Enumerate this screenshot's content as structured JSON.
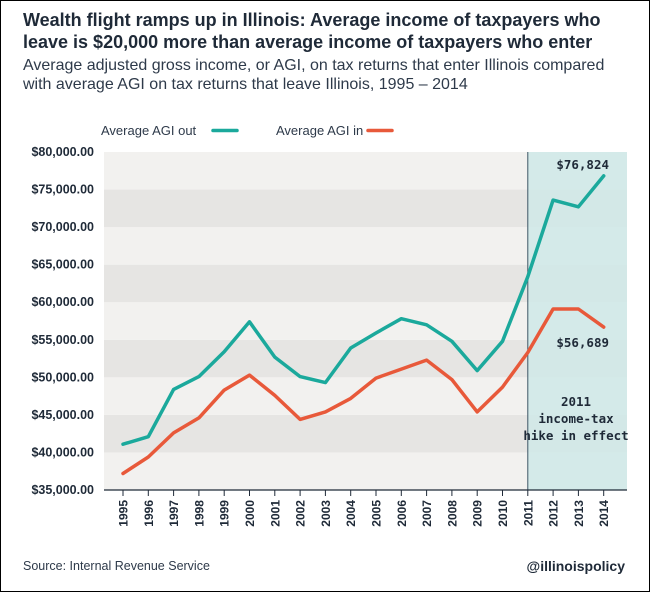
{
  "title": "Wealth flight ramps up in Illinois: Average income of taxpayers who leave is $20,000 more than average income of taxpayers who enter",
  "subtitle": "Average adjusted gross income, or AGI, on tax returns that enter Illinois compared with average AGI on tax returns that leave Illinois, 1995 – 2014",
  "source": "Source: Internal Revenue Service",
  "handle": "@illinoispolicy",
  "colors": {
    "out": "#1ba99c",
    "in": "#e8593a",
    "highlight": "#cfe9e7",
    "band_light": "#f2f1ef",
    "band_dark": "#e6e5e3"
  },
  "chart_data": {
    "type": "line",
    "xlabel": "",
    "ylabel": "",
    "x": [
      "1995",
      "1996",
      "1997",
      "1998",
      "1999",
      "2000",
      "2001",
      "2002",
      "2003",
      "2004",
      "2005",
      "2006",
      "2007",
      "2008",
      "2009",
      "2010",
      "2011",
      "2012",
      "2013",
      "2014"
    ],
    "ylim": [
      35000,
      80000
    ],
    "yticks": [
      "$35,000.00",
      "$40,000.00",
      "$45,000.00",
      "$50,000.00",
      "$55,000.00",
      "$60,000.00",
      "$65,000.00",
      "$70,000.00",
      "$75,000.00",
      "$80,000.00"
    ],
    "series": [
      {
        "name": "Average AGI out",
        "values": [
          41100,
          42100,
          48400,
          50100,
          53400,
          57400,
          52700,
          50100,
          49300,
          53900,
          55900,
          57800,
          57000,
          54800,
          50900,
          54800,
          63400,
          73600,
          72700,
          76824
        ]
      },
      {
        "name": "Average AGI in",
        "values": [
          37200,
          39400,
          42600,
          44600,
          48300,
          50300,
          47600,
          44400,
          45400,
          47200,
          49900,
          51100,
          52300,
          49700,
          45400,
          48700,
          53300,
          59100,
          59100,
          56689
        ]
      }
    ],
    "grid": "alternating horizontal bands",
    "legend": "top-left",
    "annotations": {
      "last_out": "$76,824",
      "last_in": "$56,689",
      "shaded_region_start": "2011",
      "shaded_region_label": [
        "2011",
        "income-tax",
        "hike in effect"
      ]
    }
  }
}
